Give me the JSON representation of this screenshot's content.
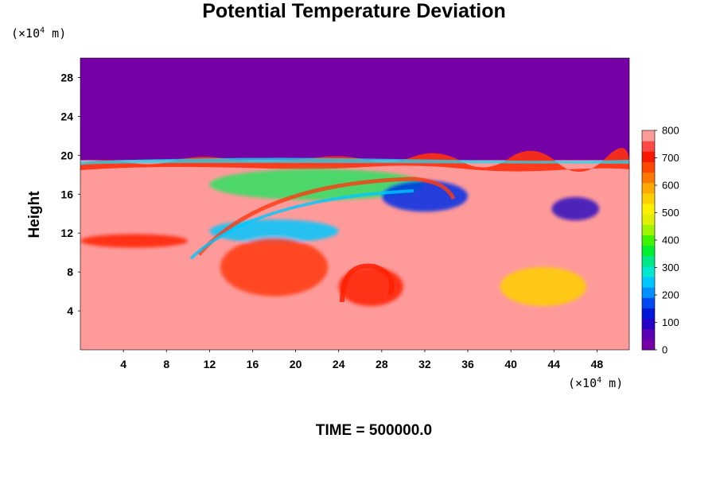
{
  "chart_data": {
    "type": "heatmap",
    "title": "Potential Temperature Deviation",
    "ylabel": "Height",
    "x_unit_prefix": "(×10",
    "x_unit_exp": "4",
    "x_unit_suffix": " m)",
    "y_unit_prefix": "(×10",
    "y_unit_exp": "4",
    "y_unit_suffix": " m)",
    "xlim": [
      0,
      51
    ],
    "ylim": [
      0,
      30
    ],
    "xticks": [
      4,
      8,
      12,
      16,
      20,
      24,
      28,
      32,
      36,
      40,
      44,
      48
    ],
    "yticks": [
      4,
      8,
      12,
      16,
      20,
      24,
      28
    ],
    "colorbar": {
      "min": 0,
      "max": 800,
      "ticks": [
        0,
        100,
        200,
        300,
        400,
        500,
        600,
        700,
        800
      ],
      "colors": [
        "#7400a6",
        "#5c00b4",
        "#2600c8",
        "#0018d8",
        "#0048f0",
        "#0090ff",
        "#00c8ff",
        "#00e8d0",
        "#00e888",
        "#00f030",
        "#40f400",
        "#a0f400",
        "#e0f000",
        "#fff000",
        "#ffd000",
        "#ffa800",
        "#ff7800",
        "#ff4800",
        "#f81800",
        "#ff4848",
        "#ff9a9a"
      ]
    },
    "background_color": "#ff9a9a",
    "upper_layer": {
      "value": 0,
      "color": "#7400a6",
      "from_height": 19.5
    },
    "regions": [
      {
        "x": 22,
        "y": 17,
        "rx": 10,
        "ry": 1.6,
        "value": 400,
        "color": "#30e060"
      },
      {
        "x": 32,
        "y": 15.8,
        "rx": 4,
        "ry": 1.6,
        "value": 150,
        "color": "#0030e8"
      },
      {
        "x": 18,
        "y": 12.2,
        "rx": 6,
        "ry": 1.2,
        "value": 300,
        "color": "#00c8ff"
      },
      {
        "x": 46,
        "y": 14.5,
        "rx": 2.2,
        "ry": 1.2,
        "value": 100,
        "color": "#3010c0"
      },
      {
        "x": 18,
        "y": 8.5,
        "rx": 5,
        "ry": 3,
        "value": 650,
        "color": "#ff3a10"
      },
      {
        "x": 27,
        "y": 6.5,
        "rx": 3,
        "ry": 2,
        "value": 700,
        "color": "#ff2000"
      },
      {
        "x": 43,
        "y": 6.5,
        "rx": 4,
        "ry": 2,
        "value": 550,
        "color": "#ffd000"
      },
      {
        "x": 5,
        "y": 11.2,
        "rx": 5,
        "ry": 0.7,
        "value": 700,
        "color": "#ff2000"
      }
    ],
    "annotation": "TIME = 500000.0"
  }
}
